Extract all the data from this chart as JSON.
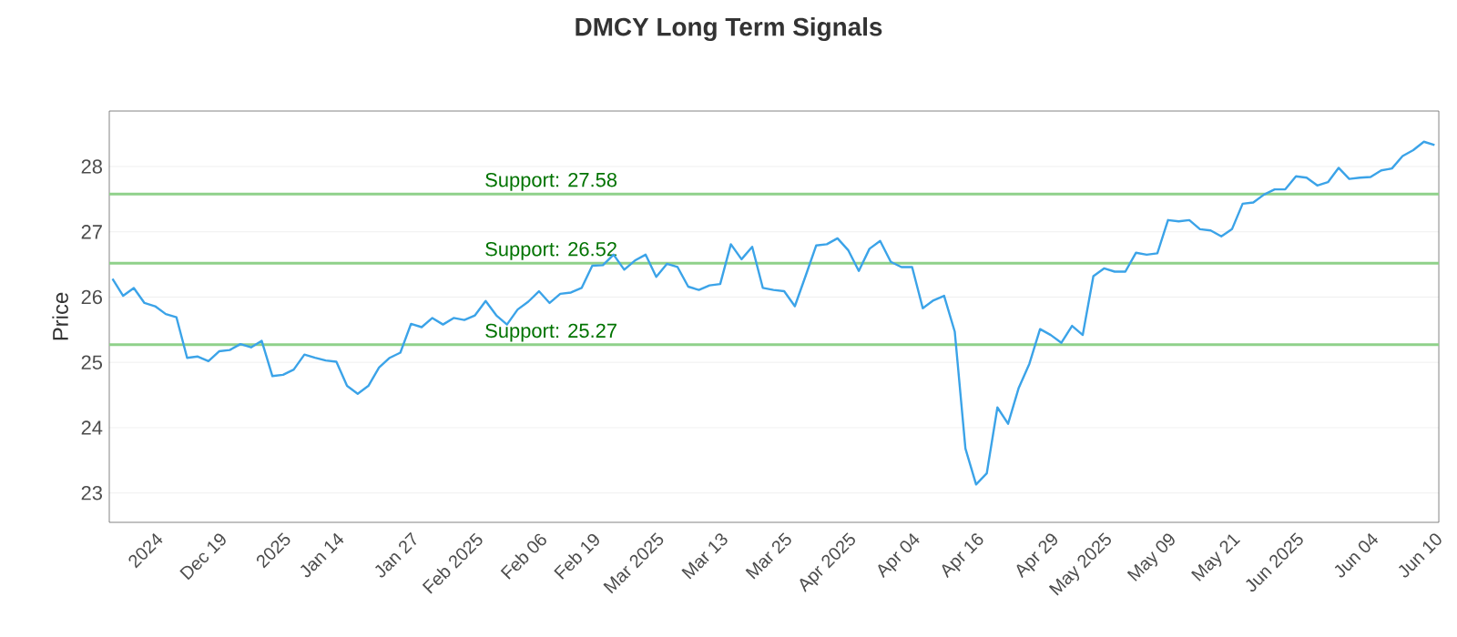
{
  "chart_data": {
    "type": "line",
    "title": "DMCY Long Term Signals",
    "ylabel": "Price",
    "categories": [
      null,
      null,
      null,
      null,
      "2024",
      null,
      null,
      null,
      null,
      null,
      "Dec 19",
      null,
      null,
      null,
      null,
      null,
      "2025",
      null,
      null,
      null,
      null,
      "Jan 14",
      null,
      null,
      null,
      null,
      null,
      null,
      "Jan 27",
      null,
      null,
      null,
      null,
      null,
      "Feb 2025",
      null,
      null,
      null,
      null,
      null,
      "Feb 06",
      null,
      null,
      null,
      null,
      "Feb 19",
      null,
      null,
      null,
      null,
      null,
      "Mar 2025",
      null,
      null,
      null,
      null,
      null,
      "Mar 13",
      null,
      null,
      null,
      null,
      null,
      "Mar 25",
      null,
      null,
      null,
      null,
      null,
      "Apr 2025",
      null,
      null,
      null,
      null,
      null,
      "Apr 04",
      null,
      null,
      null,
      null,
      null,
      "Apr 16",
      null,
      null,
      null,
      null,
      null,
      null,
      "Apr 29",
      null,
      null,
      null,
      null,
      "May 2025",
      null,
      null,
      null,
      null,
      null,
      "May 09",
      null,
      null,
      null,
      null,
      null,
      "May 21",
      null,
      null,
      null,
      null,
      null,
      "Jun 2025",
      null,
      null,
      null,
      null,
      null,
      null,
      "Jun 04",
      null,
      null,
      null,
      null,
      null,
      "Jun 10"
    ],
    "values": [
      26.28,
      26.02,
      26.14,
      25.91,
      25.86,
      25.74,
      25.69,
      25.07,
      25.09,
      25.02,
      25.17,
      25.19,
      25.28,
      25.23,
      25.33,
      24.79,
      24.81,
      24.89,
      25.12,
      25.07,
      25.03,
      25.01,
      24.64,
      24.52,
      24.64,
      24.92,
      25.07,
      25.15,
      25.59,
      25.54,
      25.68,
      25.58,
      25.68,
      25.65,
      25.72,
      25.94,
      25.72,
      25.58,
      25.81,
      25.93,
      26.09,
      25.91,
      26.05,
      26.07,
      26.14,
      26.48,
      26.49,
      26.65,
      26.42,
      26.56,
      26.65,
      26.31,
      26.51,
      26.46,
      26.16,
      26.11,
      26.18,
      26.2,
      26.81,
      26.58,
      26.77,
      26.14,
      26.11,
      26.09,
      25.86,
      26.32,
      26.79,
      26.81,
      26.9,
      26.72,
      26.4,
      26.74,
      26.86,
      26.54,
      26.46,
      26.46,
      25.83,
      25.95,
      26.02,
      25.47,
      23.68,
      23.13,
      23.3,
      24.31,
      24.06,
      24.61,
      24.98,
      25.51,
      25.42,
      25.3,
      25.56,
      25.42,
      26.32,
      26.44,
      26.39,
      26.39,
      26.68,
      26.65,
      26.67,
      27.18,
      27.16,
      27.18,
      27.04,
      27.02,
      26.93,
      27.04,
      27.43,
      27.45,
      27.57,
      27.65,
      27.65,
      27.85,
      27.83,
      27.71,
      27.76,
      27.98,
      27.81,
      27.83,
      27.84,
      27.94,
      27.97,
      28.16,
      28.25,
      28.38,
      28.33
    ],
    "color": "#3ba3e8",
    "ylim": [
      22.55,
      28.85
    ],
    "yticks": [
      23,
      24,
      25,
      26,
      27,
      28
    ],
    "grid": "y",
    "ref_lines": [
      {
        "axis": "y",
        "value": 27.58,
        "label": "Support: 27.58",
        "color": "#8fd18a"
      },
      {
        "axis": "y",
        "value": 26.52,
        "label": "Support: 26.52",
        "color": "#8fd18a"
      },
      {
        "axis": "y",
        "value": 25.27,
        "label": "Support: 25.27",
        "color": "#8fd18a"
      }
    ]
  }
}
